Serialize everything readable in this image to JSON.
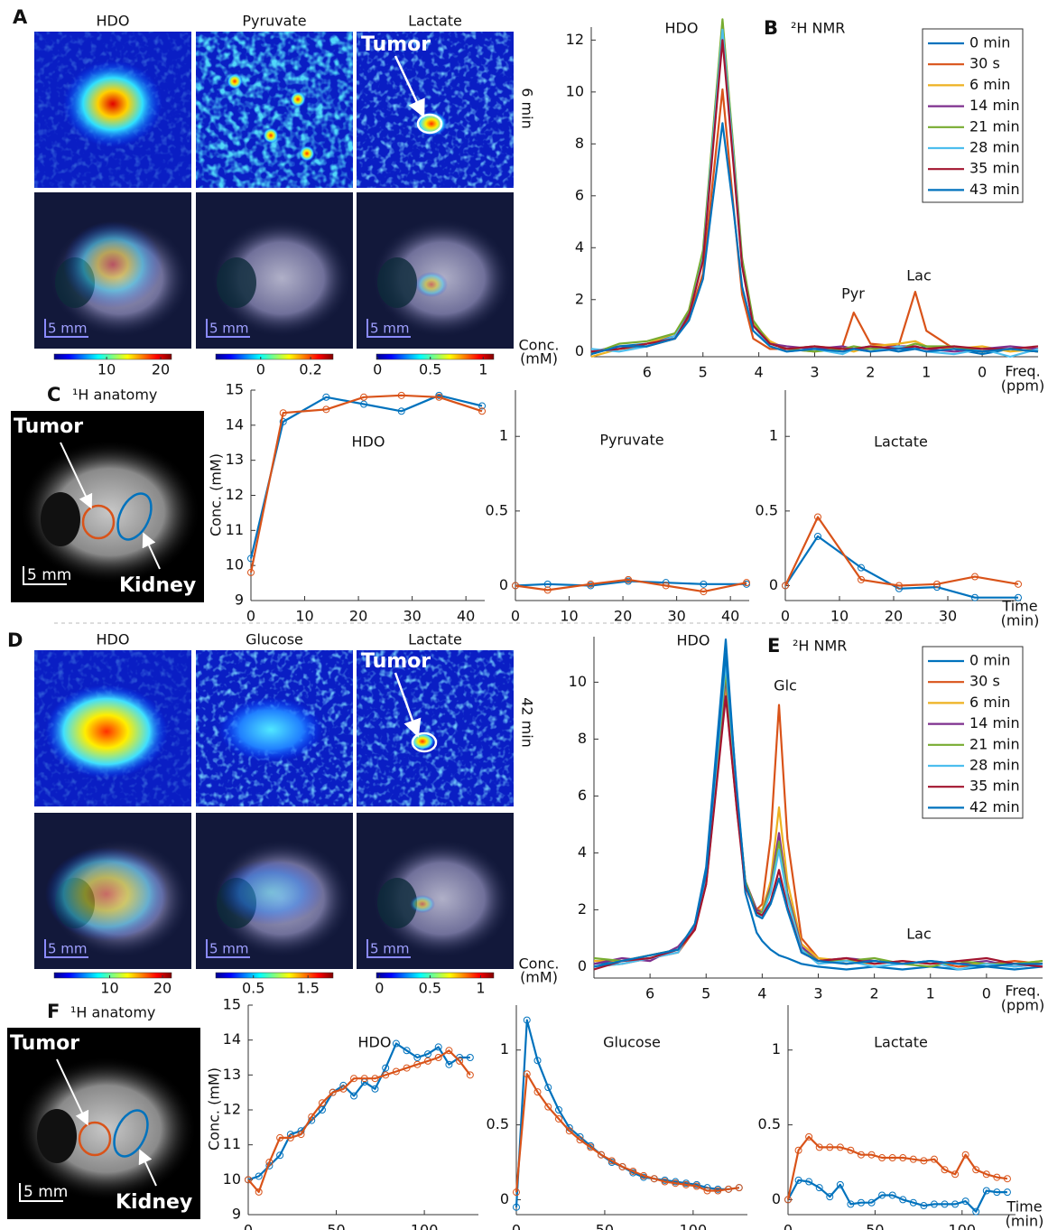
{
  "panel_labels": [
    "A",
    "B",
    "C",
    "D",
    "E",
    "F"
  ],
  "maps": [
    {
      "column_titles": [
        "HDO",
        "Pyruvate",
        "Lactate"
      ],
      "time": "6 min",
      "tumor": "Tumor",
      "scale": "5 mm",
      "conc_lines": [
        "Conc.",
        "(mM)"
      ],
      "colorbars": [
        {
          "lim": [
            0.3,
            22
          ],
          "ticks": [
            10,
            20
          ]
        },
        {
          "lim": [
            -0.18,
            0.29
          ],
          "ticks": [
            0,
            0.2
          ]
        },
        {
          "lim": [
            -0.01,
            1.1
          ],
          "ticks": [
            0,
            0.5,
            1
          ]
        }
      ]
    },
    {
      "column_titles": [
        "HDO",
        "Glucose",
        "Lactate"
      ],
      "time": "42 min",
      "tumor": "Tumor",
      "scale": "5 mm",
      "conc_lines": [
        "Conc.",
        "(mM)"
      ],
      "colorbars": [
        {
          "lim": [
            -0.5,
            21.7
          ],
          "ticks": [
            10,
            20
          ]
        },
        {
          "lim": [
            -0.19,
            1.96
          ],
          "ticks": [
            0.5,
            1.5
          ]
        },
        {
          "lim": [
            -0.03,
            1.13
          ],
          "ticks": [
            0,
            0.5,
            1
          ]
        }
      ]
    }
  ],
  "anatomy": [
    {
      "title": "¹H anatomy",
      "tumor": "Tumor",
      "kidney": "Kidney",
      "scale": "5 mm"
    },
    {
      "title": "¹H anatomy",
      "tumor": "Tumor",
      "kidney": "Kidney",
      "scale": "5 mm"
    }
  ],
  "chart_data": [
    {
      "type": "spectrum",
      "title": "²H NMR",
      "annotations": [
        "HDO",
        "Pyr",
        "Lac"
      ],
      "xlabel": [
        "Freq.",
        "(ppm)"
      ],
      "x": [
        7,
        6.5,
        6,
        5.5,
        5.25,
        5,
        4.85,
        4.65,
        4.45,
        4.3,
        4.1,
        3.8,
        3.5,
        3,
        2.5,
        2.3,
        2,
        1.5,
        1.2,
        1,
        0.5,
        0,
        -0.5,
        -1
      ],
      "xlim": [
        7,
        -1
      ],
      "xticks": [
        6,
        5,
        4,
        3,
        2,
        1,
        0
      ],
      "ylim": [
        -0.2,
        12.5
      ],
      "yticks": [
        0,
        2,
        4,
        6,
        8,
        10,
        12
      ],
      "legend": "upper right",
      "series": [
        {
          "name": "0 min",
          "color": "#0072bd",
          "values": [
            -0.1,
            0.2,
            0.3,
            0.6,
            1.5,
            3.7,
            7.3,
            12.2,
            7.3,
            3.4,
            1.1,
            0.3,
            0.1,
            0.2,
            0.0,
            0.1,
            0.2,
            0.0,
            0.1,
            0.2,
            0.1,
            -0.1,
            0.1,
            0.0
          ]
        },
        {
          "name": "30 s",
          "color": "#d95319",
          "values": [
            0.0,
            0.1,
            0.2,
            0.5,
            1.3,
            3.0,
            6.0,
            10.1,
            5.5,
            2.2,
            0.5,
            0.1,
            0.1,
            0.0,
            0.2,
            1.5,
            0.3,
            0.2,
            2.3,
            0.8,
            0.1,
            0.0,
            0.1,
            0.0
          ]
        },
        {
          "name": "6 min",
          "color": "#edb120",
          "values": [
            -0.2,
            0.1,
            0.3,
            0.7,
            1.6,
            3.8,
            7.6,
            12.7,
            7.6,
            3.5,
            1.1,
            0.4,
            0.1,
            0.2,
            0.1,
            0.0,
            0.2,
            0.3,
            0.4,
            0.2,
            0.1,
            0.2,
            0.0,
            0.1
          ]
        },
        {
          "name": "14 min",
          "color": "#7e2f8e",
          "values": [
            0.0,
            0.2,
            0.2,
            0.6,
            1.5,
            3.7,
            7.5,
            12.5,
            7.5,
            3.4,
            1.0,
            0.3,
            0.2,
            0.1,
            0.2,
            0.1,
            0.1,
            0.2,
            0.2,
            0.1,
            0.0,
            0.1,
            0.2,
            0.1
          ]
        },
        {
          "name": "21 min",
          "color": "#77ac30",
          "values": [
            -0.1,
            0.3,
            0.4,
            0.7,
            1.6,
            3.9,
            7.7,
            12.8,
            7.7,
            3.6,
            1.2,
            0.3,
            0.1,
            0.0,
            0.1,
            0.2,
            0.1,
            0.1,
            0.3,
            0.2,
            0.2,
            0.0,
            0.1,
            0.0
          ]
        },
        {
          "name": "28 min",
          "color": "#4dbeee",
          "values": [
            0.1,
            0.0,
            0.2,
            0.6,
            1.4,
            3.6,
            7.4,
            12.4,
            7.4,
            3.3,
            1.0,
            0.2,
            0.0,
            0.1,
            -0.1,
            0.1,
            0.0,
            0.2,
            0.1,
            0.0,
            -0.1,
            0.1,
            -0.2,
            0.1
          ]
        },
        {
          "name": "35 min",
          "color": "#a2142f",
          "values": [
            0.0,
            0.1,
            0.3,
            0.5,
            1.4,
            3.5,
            7.1,
            12.0,
            7.1,
            3.3,
            1.0,
            0.3,
            0.1,
            0.2,
            0.1,
            0.1,
            0.2,
            0.1,
            0.2,
            0.1,
            0.2,
            0.1,
            0.1,
            0.2
          ]
        },
        {
          "name": "43 min",
          "color": "#0072bd",
          "values": [
            -0.1,
            0.2,
            0.2,
            0.5,
            1.2,
            2.8,
            5.4,
            8.8,
            5.4,
            2.5,
            0.8,
            0.2,
            0.0,
            0.1,
            0.0,
            0.1,
            0.0,
            0.1,
            0.1,
            0.0,
            0.1,
            0.0,
            0.1,
            0.0
          ]
        }
      ]
    },
    {
      "type": "time",
      "title": "HDO",
      "ylabel": "Conc. (mM)",
      "markers": true,
      "x": [
        0,
        6,
        14,
        21,
        28,
        35,
        43
      ],
      "xlim": [
        0,
        43.5
      ],
      "xticks": [
        0,
        10,
        20,
        30,
        40
      ],
      "ylim": [
        9,
        15
      ],
      "yticks": [
        9,
        10,
        11,
        12,
        13,
        14,
        15
      ],
      "series": [
        {
          "color": "#0072bd",
          "values": [
            10.2,
            14.1,
            14.8,
            14.6,
            14.4,
            14.85,
            14.55
          ]
        },
        {
          "color": "#d95319",
          "values": [
            9.8,
            14.35,
            14.45,
            14.8,
            14.85,
            14.8,
            14.4
          ]
        }
      ]
    },
    {
      "type": "time",
      "title": "Pyruvate",
      "markers": true,
      "x": [
        0,
        6,
        14,
        21,
        28,
        35,
        43
      ],
      "xlim": [
        0,
        43.5
      ],
      "xticks": [
        0,
        10,
        20,
        30,
        40
      ],
      "ylim": [
        -0.1,
        1.31
      ],
      "yticks": [
        0,
        0.5,
        1
      ],
      "series": [
        {
          "color": "#0072bd",
          "values": [
            0,
            0.01,
            0,
            0.03,
            0.02,
            0.01,
            0.01
          ]
        },
        {
          "color": "#d95319",
          "values": [
            0,
            -0.03,
            0.01,
            0.04,
            0,
            -0.04,
            0.02
          ]
        }
      ]
    },
    {
      "type": "time",
      "title": "Lactate",
      "xlabel": [
        "Time",
        "(min)"
      ],
      "markers": true,
      "x": [
        0,
        6,
        14,
        21,
        28,
        35,
        43
      ],
      "xlim": [
        0,
        43.5
      ],
      "xticks": [
        0,
        10,
        20,
        30
      ],
      "ylim": [
        -0.1,
        1.31
      ],
      "yticks": [
        0,
        0.5,
        1
      ],
      "series": [
        {
          "color": "#0072bd",
          "values": [
            0,
            0.33,
            0.12,
            -0.02,
            -0.01,
            -0.08,
            -0.08
          ]
        },
        {
          "color": "#d95319",
          "values": [
            0,
            0.46,
            0.04,
            0,
            0.01,
            0.06,
            0.01
          ]
        }
      ]
    },
    {
      "type": "spectrum",
      "title": "²H NMR",
      "annotations": [
        "HDO",
        "Glc",
        "Lac"
      ],
      "xlabel": [
        "Freq.",
        "(ppm)"
      ],
      "x": [
        7,
        6.5,
        6,
        5.5,
        5.2,
        5,
        4.85,
        4.65,
        4.45,
        4.3,
        4.1,
        4.0,
        3.85,
        3.7,
        3.55,
        3.3,
        3,
        2.5,
        2,
        1.5,
        1,
        0.5,
        0,
        -0.5,
        -1
      ],
      "xlim": [
        7,
        -1
      ],
      "xticks": [
        6,
        5,
        4,
        3,
        2,
        1,
        0
      ],
      "ylim": [
        -0.4,
        11.6
      ],
      "yticks": [
        0,
        2,
        4,
        6,
        8,
        10
      ],
      "legend": "upper right",
      "series": [
        {
          "name": "0 min",
          "color": "#0072bd",
          "values": [
            0.1,
            0.2,
            0.3,
            0.6,
            1.5,
            3.5,
            6.9,
            11.5,
            6.0,
            2.6,
            1.2,
            0.9,
            0.6,
            0.4,
            0.3,
            0.1,
            0.0,
            -0.1,
            0.0,
            -0.1,
            0.0,
            -0.1,
            0.0,
            -0.1,
            0.0
          ]
        },
        {
          "name": "30 s",
          "color": "#d95319",
          "values": [
            0.0,
            0.1,
            0.3,
            0.5,
            1.3,
            2.9,
            5.8,
            9.6,
            5.5,
            3.0,
            2.0,
            2.2,
            4.5,
            9.2,
            4.5,
            1.0,
            0.3,
            0.1,
            0.2,
            0.1,
            0.2,
            0.0,
            0.1,
            0.2,
            0.1
          ]
        },
        {
          "name": "6 min",
          "color": "#edb120",
          "values": [
            0.2,
            0.2,
            0.4,
            0.6,
            1.4,
            3.0,
            6.0,
            10.0,
            5.8,
            3.0,
            2.0,
            2.0,
            3.0,
            5.6,
            3.0,
            0.8,
            0.3,
            0.2,
            0.1,
            0.2,
            0.1,
            0.2,
            0.0,
            0.1,
            0.2
          ]
        },
        {
          "name": "14 min",
          "color": "#7e2f8e",
          "values": [
            0.1,
            0.3,
            0.2,
            0.7,
            1.4,
            3.1,
            6.1,
            10.2,
            5.9,
            3.0,
            2.0,
            1.9,
            2.8,
            4.7,
            2.6,
            0.7,
            0.2,
            0.3,
            0.2,
            0.1,
            0.2,
            0.1,
            0.2,
            0.0,
            0.1
          ]
        },
        {
          "name": "21 min",
          "color": "#77ac30",
          "values": [
            0.3,
            0.2,
            0.4,
            0.6,
            1.5,
            3.1,
            6.2,
            10.4,
            6.0,
            3.0,
            1.9,
            1.9,
            2.7,
            4.4,
            2.5,
            0.6,
            0.2,
            0.2,
            0.3,
            0.1,
            0.0,
            0.2,
            0.1,
            0.1,
            0.2
          ]
        },
        {
          "name": "28 min",
          "color": "#4dbeee",
          "values": [
            0.0,
            0.1,
            0.3,
            0.5,
            1.5,
            3.2,
            6.4,
            10.7,
            6.1,
            2.9,
            1.8,
            1.8,
            2.6,
            4.1,
            2.4,
            0.6,
            0.1,
            0.2,
            0.0,
            0.1,
            0.2,
            -0.1,
            0.1,
            0.0,
            0.1
          ]
        },
        {
          "name": "35 min",
          "color": "#a2142f",
          "values": [
            -0.1,
            0.2,
            0.3,
            0.6,
            1.3,
            2.9,
            5.7,
            9.5,
            5.5,
            2.8,
            1.9,
            1.8,
            2.3,
            3.4,
            2.1,
            0.5,
            0.2,
            0.3,
            0.1,
            0.2,
            0.1,
            0.2,
            0.3,
            0.1,
            0.0
          ]
        },
        {
          "name": "42 min",
          "color": "#0072bd",
          "values": [
            0.0,
            0.2,
            0.4,
            0.6,
            1.5,
            3.3,
            6.6,
            11.0,
            6.2,
            2.9,
            1.8,
            1.7,
            2.2,
            3.1,
            2.0,
            0.5,
            0.2,
            0.1,
            0.2,
            0.1,
            0.2,
            0.1,
            0.0,
            0.1,
            0.1
          ]
        }
      ]
    },
    {
      "type": "time",
      "title": "HDO",
      "ylabel": "Conc. (mM)",
      "markers": true,
      "x": [
        0,
        6,
        12,
        18,
        24,
        30,
        36,
        42,
        48,
        54,
        60,
        66,
        72,
        78,
        84,
        90,
        96,
        102,
        108,
        114,
        120,
        126
      ],
      "xlim": [
        0,
        130.7
      ],
      "xticks": [
        0,
        50,
        100
      ],
      "ylim": [
        9,
        15
      ],
      "yticks": [
        9,
        10,
        11,
        12,
        13,
        14,
        15
      ],
      "series": [
        {
          "color": "#0072bd",
          "values": [
            10,
            10.1,
            10.4,
            10.7,
            11.3,
            11.4,
            11.7,
            12.0,
            12.5,
            12.7,
            12.4,
            12.8,
            12.6,
            13.2,
            13.9,
            13.7,
            13.5,
            13.6,
            13.8,
            13.3,
            13.5,
            13.5
          ]
        },
        {
          "color": "#d95319",
          "values": [
            10,
            9.65,
            10.5,
            11.2,
            11.2,
            11.3,
            11.8,
            12.2,
            12.5,
            12.6,
            12.9,
            12.9,
            12.9,
            13.0,
            13.1,
            13.2,
            13.3,
            13.4,
            13.5,
            13.7,
            13.4,
            13.0
          ]
        }
      ]
    },
    {
      "type": "time",
      "title": "Glucose",
      "markers": true,
      "x": [
        0,
        6,
        12,
        18,
        24,
        30,
        36,
        42,
        48,
        54,
        60,
        66,
        72,
        78,
        84,
        90,
        96,
        102,
        108,
        114,
        120,
        126
      ],
      "xlim": [
        0,
        130.7
      ],
      "xticks": [
        0,
        50,
        100
      ],
      "ylim": [
        -0.1,
        1.3
      ],
      "yticks": [
        0,
        0.5,
        1
      ],
      "series": [
        {
          "color": "#0072bd",
          "values": [
            -0.05,
            1.2,
            0.93,
            0.75,
            0.6,
            0.48,
            0.42,
            0.36,
            0.3,
            0.25,
            0.22,
            0.18,
            0.15,
            0.14,
            0.13,
            0.12,
            0.11,
            0.1,
            0.08,
            0.07,
            0.07,
            0.08
          ]
        },
        {
          "color": "#d95319",
          "values": [
            0.05,
            0.84,
            0.72,
            0.62,
            0.54,
            0.46,
            0.4,
            0.35,
            0.3,
            0.26,
            0.22,
            0.19,
            0.16,
            0.14,
            0.12,
            0.11,
            0.1,
            0.09,
            0.06,
            0.06,
            0.07,
            0.08
          ]
        }
      ]
    },
    {
      "type": "time",
      "title": "Lactate",
      "xlabel": [
        "Time",
        "(min)"
      ],
      "markers": true,
      "x": [
        0,
        6,
        12,
        18,
        24,
        30,
        36,
        42,
        48,
        54,
        60,
        66,
        72,
        78,
        84,
        90,
        96,
        102,
        108,
        114,
        120,
        126
      ],
      "xlim": [
        0,
        130.7
      ],
      "xticks": [
        0,
        50,
        100
      ],
      "ylim": [
        -0.1,
        1.3
      ],
      "yticks": [
        0,
        0.5,
        1
      ],
      "series": [
        {
          "color": "#0072bd",
          "values": [
            0,
            0.13,
            0.12,
            0.08,
            0.02,
            0.1,
            -0.03,
            -0.02,
            -0.02,
            0.03,
            0.03,
            0,
            -0.02,
            -0.04,
            -0.03,
            -0.03,
            -0.03,
            -0.01,
            -0.08,
            0.06,
            0.05,
            0.05
          ]
        },
        {
          "color": "#d95319",
          "values": [
            0,
            0.33,
            0.42,
            0.35,
            0.35,
            0.35,
            0.33,
            0.3,
            0.3,
            0.28,
            0.28,
            0.28,
            0.27,
            0.26,
            0.27,
            0.2,
            0.17,
            0.3,
            0.2,
            0.17,
            0.15,
            0.14
          ]
        }
      ]
    }
  ]
}
